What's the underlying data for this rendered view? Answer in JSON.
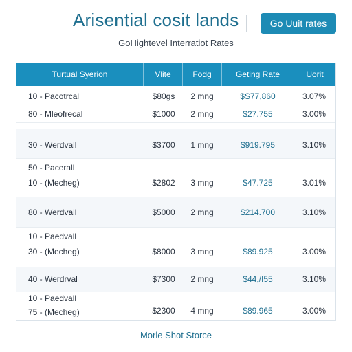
{
  "header": {
    "title": "Arisential cosit lands",
    "button_label": "Go Uuit rates",
    "subtitle": "GoHightevel Interratiot Rates"
  },
  "table": {
    "columns": [
      "Turtual Syerion",
      "Vlite",
      "Fodg",
      "Geting Rate",
      "Uorit"
    ],
    "rows": [
      {
        "lines": [
          "10 -  Pacotrcal",
          "80 -  Mleofrecal"
        ],
        "v1": "$80gs",
        "v2": "2 mng",
        "rate": "$S77,860",
        "pct": "3.07%",
        "v1b": "$1000",
        "v2b": "2 mng",
        "rateb": "$27.755",
        "pctb": "3.00%"
      },
      {
        "lines": [
          "30 -  Werdvall"
        ],
        "v1": "$3700",
        "v2": "1 mng",
        "rate": "$919.795",
        "pct": "3.10%"
      },
      {
        "lines": [
          "50 -  Pacerall",
          "10 -  (Mecheg)"
        ],
        "v1": "$2802",
        "v2": "3 mng",
        "rate": "$47.725",
        "pct": "3.01%"
      },
      {
        "lines": [
          "80 -  Werdvall"
        ],
        "v1": "$5000",
        "v2": "2 mng",
        "rate": "$214.700",
        "pct": "3.10%"
      },
      {
        "lines": [
          "10 -  Paedvall",
          "30 -  (Mecheg)"
        ],
        "v1": "$8000",
        "v2": "3 mng",
        "rate": "$89.925",
        "pct": "3.00%"
      },
      {
        "lines": [
          "40 -  Werdrval"
        ],
        "v1": "$7300",
        "v2": "2 mng",
        "rate": "$44,/I55",
        "pct": "3.10%"
      },
      {
        "lines": [
          "10 -  Paedvall",
          "75 -  (Mecheg)"
        ],
        "v1": "$2300",
        "v2": "4 mng",
        "rate": "$89.965",
        "pct": "3.00%"
      }
    ]
  },
  "footer": {
    "link_label": "Morle Shot Storce"
  },
  "colors": {
    "accent": "#1a8fbe",
    "title": "#1f6f8f",
    "alt_row": "#f4f7fa"
  }
}
